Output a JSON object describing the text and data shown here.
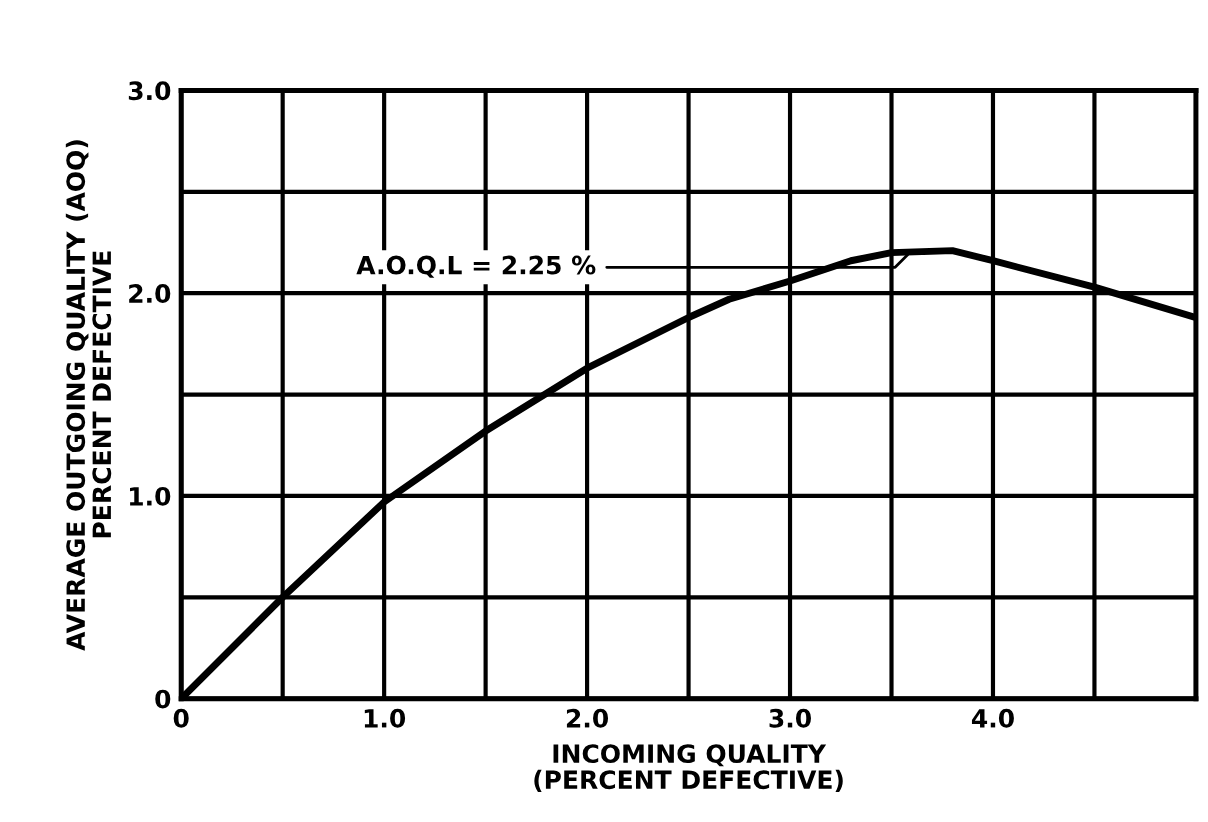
{
  "chart_data": {
    "type": "line",
    "xlabel": "INCOMING QUALITY\n(PERCENT DEFECTIVE)",
    "ylabel": "AVERAGE OUTGOING QUALITY (AOQ)\nPERCENT DEFECTIVE",
    "x": [
      0,
      0.5,
      1.0,
      1.5,
      2.0,
      2.5,
      2.7,
      3.0,
      3.3,
      3.5,
      3.8,
      4.0,
      4.5,
      5.0
    ],
    "series": [
      {
        "color": "#000000",
        "values": [
          0,
          0.5,
          0.97,
          1.32,
          1.63,
          1.88,
          1.97,
          2.06,
          2.16,
          2.2,
          2.21,
          2.16,
          2.03,
          1.88
        ]
      }
    ],
    "annotations": [
      {
        "text": "A.O.Q.L = 2.25 %",
        "x": 3.6,
        "y": 2.21
      }
    ],
    "xlim": [
      0,
      5
    ],
    "ylim": [
      0,
      3
    ],
    "xticks": [
      0,
      {
        "value": 0.5,
        "label": null
      },
      {
        "value": 1,
        "label": "1.0"
      },
      {
        "value": 1.5,
        "label": null
      },
      {
        "value": 2,
        "label": "2.0"
      },
      {
        "value": 2.5,
        "label": null
      },
      {
        "value": 3,
        "label": "3.0"
      },
      {
        "value": 3.5,
        "label": null
      },
      {
        "value": 4,
        "label": "4.0"
      },
      {
        "value": 4.5,
        "label": null
      }
    ],
    "yticks": [
      0,
      {
        "value": 0.5,
        "label": null
      },
      {
        "value": 1,
        "label": "1.0"
      },
      {
        "value": 1.5,
        "label": null
      },
      {
        "value": 2,
        "label": "2.0"
      },
      {
        "value": 2.5,
        "label": null
      },
      {
        "value": 3,
        "label": "3.0"
      }
    ],
    "grid": true,
    "marker": "none",
    "line_style": "solid",
    "legend": false
  }
}
